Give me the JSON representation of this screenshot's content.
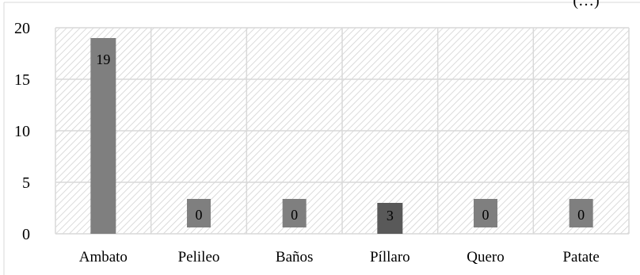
{
  "chart_data": {
    "type": "bar",
    "title": "(…)",
    "categories": [
      "Ambato",
      "Pelileo",
      "Baños",
      "Píllaro",
      "Quero",
      "Patate"
    ],
    "values": [
      19,
      0,
      0,
      3,
      0,
      0
    ],
    "data_labels": [
      "19",
      "0",
      "0",
      "3",
      "0",
      "0"
    ],
    "ylim": [
      0,
      20
    ],
    "yticks": [
      0,
      5,
      10,
      15,
      20
    ],
    "grid": true,
    "plot_background": "diagonal-hatch",
    "colors": {
      "bar": "#7f7f7f",
      "bar_highlight": "#595959",
      "label_box": "#7f7f7f",
      "grid": "#d9d9d9",
      "hatch": "#cfcfcf"
    }
  }
}
